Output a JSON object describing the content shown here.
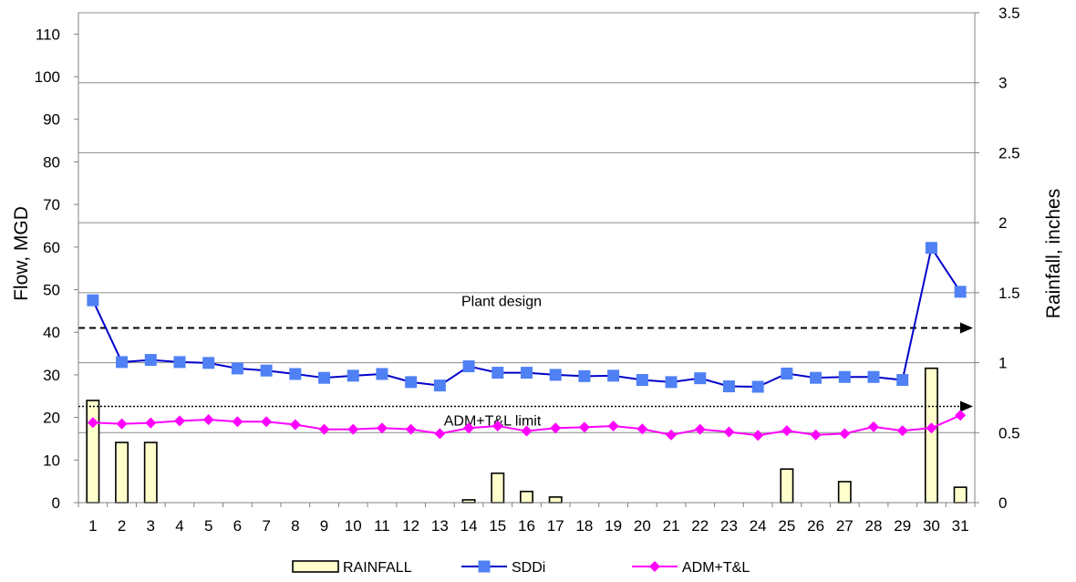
{
  "chart_data": {
    "type": "bar+line",
    "title": "",
    "x": [
      1,
      2,
      3,
      4,
      5,
      6,
      7,
      8,
      9,
      10,
      11,
      12,
      13,
      14,
      15,
      16,
      17,
      18,
      19,
      20,
      21,
      22,
      23,
      24,
      25,
      26,
      27,
      28,
      29,
      30,
      31
    ],
    "y_left": {
      "label": "Flow, MGD",
      "lim": [
        0,
        115
      ],
      "ticks": [
        0,
        10,
        20,
        30,
        40,
        50,
        60,
        70,
        80,
        90,
        100,
        110
      ]
    },
    "y_right": {
      "label": "Rainfall, inches",
      "lim": [
        0,
        3.5
      ],
      "ticks": [
        "0",
        "0.5",
        "1",
        "1.5",
        "2",
        "2.5",
        "3",
        "3.5"
      ]
    },
    "grid": true,
    "legend_position": "bottom",
    "series": [
      {
        "name": "RAINFALL",
        "kind": "bar",
        "axis": "right",
        "color": "#FFFFCC",
        "values": [
          0.73,
          0.43,
          0.43,
          0,
          0,
          0,
          0,
          0,
          0,
          0,
          0,
          0,
          0,
          0.02,
          0.21,
          0.08,
          0.04,
          0,
          0,
          0,
          0,
          0,
          0,
          0,
          0.24,
          0,
          0.15,
          0,
          0,
          0.96,
          0.11
        ]
      },
      {
        "name": "SDDi",
        "kind": "line",
        "axis": "left",
        "color": "#0000CC",
        "marker": "square",
        "marker_color": "#4F81F5",
        "values": [
          47.5,
          33,
          33.5,
          33,
          32.8,
          31.5,
          31,
          30.2,
          29.3,
          29.8,
          30.2,
          28.3,
          27.5,
          32,
          30.5,
          30.5,
          30,
          29.7,
          29.8,
          28.8,
          28.3,
          29.2,
          27.3,
          27.2,
          30.3,
          29.3,
          29.5,
          29.5,
          28.8,
          59.8,
          49.5
        ]
      },
      {
        "name": "ADM+T&L",
        "kind": "line",
        "axis": "left",
        "color": "#FF00FF",
        "marker": "diamond",
        "values": [
          18.8,
          18.5,
          18.7,
          19.2,
          19.5,
          19,
          19,
          18.3,
          17.2,
          17.2,
          17.5,
          17.2,
          16.2,
          17.5,
          18,
          16.8,
          17.5,
          17.7,
          18,
          17.3,
          15.9,
          17.2,
          16.6,
          15.8,
          16.9,
          15.9,
          16.2,
          17.8,
          16.9,
          17.5,
          20.5
        ]
      }
    ],
    "reference_lines": [
      {
        "name": "Plant design",
        "value": 41,
        "style": "dashed"
      },
      {
        "name": "ADM+T&L limit",
        "value": 22.6,
        "style": "dotted"
      }
    ]
  }
}
